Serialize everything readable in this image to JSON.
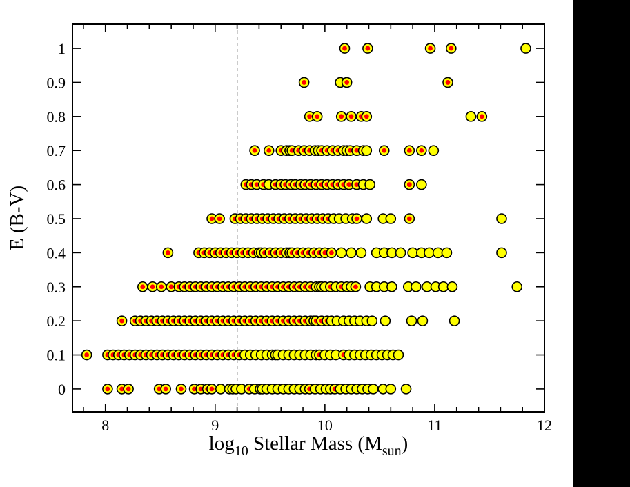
{
  "figure": {
    "description": "Scatter plot of dust reddening E(B-V) versus galaxy stellar mass",
    "colors": {
      "background": "#ffffff",
      "frame": "#000000",
      "marker_fill": "#ffff00",
      "marker_edge": "#000000",
      "marker_center": "#ff0000",
      "dashed_line": "#000000",
      "right_strip": "#000000"
    }
  },
  "chart_data": {
    "type": "scatter",
    "title": "",
    "xlabel": "log10 Stellar Mass (Msun)",
    "xlabel_parts": [
      {
        "t": "log"
      },
      {
        "t": "10",
        "sub": true
      },
      {
        "t": " Stellar Mass (M"
      },
      {
        "t": "sun",
        "sub": true
      },
      {
        "t": ")"
      }
    ],
    "ylabel": "E (B-V)",
    "xlim": [
      7.7,
      12.0
    ],
    "ylim": [
      -0.067,
      1.071
    ],
    "x_major_ticks": [
      8,
      9,
      10,
      11,
      12
    ],
    "x_tick_labels": [
      "8",
      "9",
      "10",
      "11",
      "12"
    ],
    "x_minor_tick_step": 0.2,
    "y_major_ticks": [
      0,
      0.1,
      0.2,
      0.3,
      0.4,
      0.5,
      0.6,
      0.7,
      0.8,
      0.9,
      1
    ],
    "y_tick_labels": [
      "0",
      "0.1",
      "0.2",
      "0.3",
      "0.4",
      "0.5",
      "0.6",
      "0.7",
      "0.8",
      "0.9",
      "1"
    ],
    "grid": false,
    "legend": false,
    "vline": {
      "x": 9.2,
      "style": "dashed",
      "color": "#000000"
    },
    "marker_style": {
      "outer_radius": 7,
      "outer_fill": "#ffff00",
      "outer_stroke": "#000000",
      "inner_radius": 3.4,
      "inner_fill": "#ff0000"
    },
    "series": [
      {
        "name": "yellow-open-circle",
        "marker": "yellow circle, black edge",
        "rows": [
          {
            "y": 0.0,
            "x": [
              9.05,
              9.13,
              9.19,
              9.24,
              9.36,
              9.43,
              9.47,
              9.52,
              9.57,
              9.62,
              9.67,
              9.72,
              9.77,
              9.82,
              9.91,
              9.96,
              10.01,
              10.05,
              10.14,
              10.19,
              10.24,
              10.29,
              10.34,
              10.39,
              10.44,
              10.53,
              10.6,
              10.74
            ]
          },
          {
            "y": 0.1,
            "x": [
              9.27,
              9.32,
              9.37,
              9.42,
              9.47,
              9.52,
              9.57,
              9.62,
              9.67,
              9.72,
              9.77,
              9.82,
              9.87,
              9.92,
              10.0,
              10.05,
              10.1,
              10.22,
              10.27,
              10.32,
              10.37,
              10.42,
              10.47,
              10.52,
              10.57,
              10.62,
              10.67
            ]
          },
          {
            "y": 0.2,
            "x": [
              9.9,
              10.06,
              10.11,
              10.17,
              10.22,
              10.27,
              10.32,
              10.38,
              10.43,
              10.55,
              10.79,
              10.89,
              11.18
            ]
          },
          {
            "y": 0.3,
            "x": [
              9.95,
              10.0,
              10.1,
              10.2,
              10.24,
              10.41,
              10.47,
              10.54,
              10.61,
              10.76,
              10.83,
              10.93,
              11.01,
              11.08,
              11.16,
              11.75
            ]
          },
          {
            "y": 0.4,
            "x": [
              9.42,
              9.68,
              10.15,
              10.24,
              10.33,
              10.47,
              10.54,
              10.61,
              10.69,
              10.8,
              10.88,
              10.95,
              11.03,
              11.11,
              11.61
            ]
          },
          {
            "y": 0.5,
            "x": [
              10.08,
              10.13,
              10.19,
              10.25,
              10.38,
              10.53,
              10.6,
              11.61
            ]
          },
          {
            "y": 0.6,
            "x": [
              9.49,
              10.35,
              10.41,
              10.88
            ]
          },
          {
            "y": 0.7,
            "x": [
              9.68,
              9.94,
              10.2,
              10.38,
              10.99
            ]
          },
          {
            "y": 0.8,
            "x": [
              11.33
            ]
          },
          {
            "y": 0.9,
            "x": [
              10.14
            ]
          },
          {
            "y": 1.0,
            "x": [
              11.83
            ]
          }
        ]
      },
      {
        "name": "red-centered-circle",
        "marker": "yellow circle, black edge, red center dot",
        "rows": [
          {
            "y": 0.0,
            "x": [
              8.02,
              8.15,
              8.21,
              8.49,
              8.55,
              8.69,
              8.81,
              8.87,
              8.93,
              8.97,
              9.16,
              9.31,
              9.41,
              9.86,
              10.09
            ]
          },
          {
            "y": 0.1,
            "x": [
              7.83,
              8.02,
              8.07,
              8.12,
              8.17,
              8.22,
              8.27,
              8.32,
              8.37,
              8.42,
              8.47,
              8.52,
              8.57,
              8.62,
              8.67,
              8.72,
              8.77,
              8.82,
              8.87,
              8.92,
              8.97,
              9.02,
              9.07,
              9.12,
              9.17,
              9.22,
              9.55,
              9.95,
              10.17
            ]
          },
          {
            "y": 0.2,
            "x": [
              8.15,
              8.27,
              8.32,
              8.37,
              8.42,
              8.47,
              8.52,
              8.57,
              8.62,
              8.67,
              8.72,
              8.77,
              8.82,
              8.87,
              8.92,
              8.97,
              9.02,
              9.07,
              9.12,
              9.17,
              9.22,
              9.27,
              9.32,
              9.37,
              9.42,
              9.47,
              9.52,
              9.57,
              9.62,
              9.67,
              9.72,
              9.77,
              9.82,
              9.87,
              9.92,
              9.97,
              10.02
            ]
          },
          {
            "y": 0.3,
            "x": [
              8.34,
              8.43,
              8.51,
              8.6,
              8.67,
              8.72,
              8.77,
              8.82,
              8.87,
              8.92,
              8.97,
              9.02,
              9.07,
              9.12,
              9.17,
              9.22,
              9.27,
              9.32,
              9.37,
              9.42,
              9.47,
              9.52,
              9.57,
              9.62,
              9.67,
              9.72,
              9.77,
              9.82,
              9.87,
              9.92,
              9.97,
              10.05,
              10.15,
              10.28
            ]
          },
          {
            "y": 0.4,
            "x": [
              8.57,
              8.85,
              8.9,
              8.95,
              9.0,
              9.05,
              9.1,
              9.15,
              9.2,
              9.25,
              9.3,
              9.35,
              9.4,
              9.45,
              9.5,
              9.55,
              9.6,
              9.65,
              9.7,
              9.75,
              9.8,
              9.85,
              9.9,
              9.95,
              10.0,
              10.06
            ]
          },
          {
            "y": 0.5,
            "x": [
              8.97,
              9.04,
              9.18,
              9.23,
              9.28,
              9.33,
              9.38,
              9.43,
              9.48,
              9.53,
              9.58,
              9.63,
              9.68,
              9.73,
              9.78,
              9.83,
              9.88,
              9.93,
              9.98,
              10.03,
              10.29,
              10.77
            ]
          },
          {
            "y": 0.6,
            "x": [
              9.28,
              9.33,
              9.38,
              9.44,
              9.55,
              9.6,
              9.64,
              9.69,
              9.73,
              9.78,
              9.82,
              9.87,
              9.92,
              9.97,
              10.02,
              10.07,
              10.12,
              10.17,
              10.22,
              10.29,
              10.77
            ]
          },
          {
            "y": 0.7,
            "x": [
              9.36,
              9.49,
              9.6,
              9.65,
              9.7,
              9.76,
              9.81,
              9.86,
              9.91,
              9.97,
              10.02,
              10.07,
              10.12,
              10.17,
              10.23,
              10.29,
              10.35,
              10.54,
              10.77,
              10.88
            ]
          },
          {
            "y": 0.8,
            "x": [
              9.86,
              9.93,
              10.15,
              10.24,
              10.33,
              10.38,
              11.43
            ]
          },
          {
            "y": 0.9,
            "x": [
              9.81,
              10.2,
              11.12
            ]
          },
          {
            "y": 1.0,
            "x": [
              10.18,
              10.39,
              10.96,
              11.15
            ]
          }
        ]
      }
    ]
  }
}
